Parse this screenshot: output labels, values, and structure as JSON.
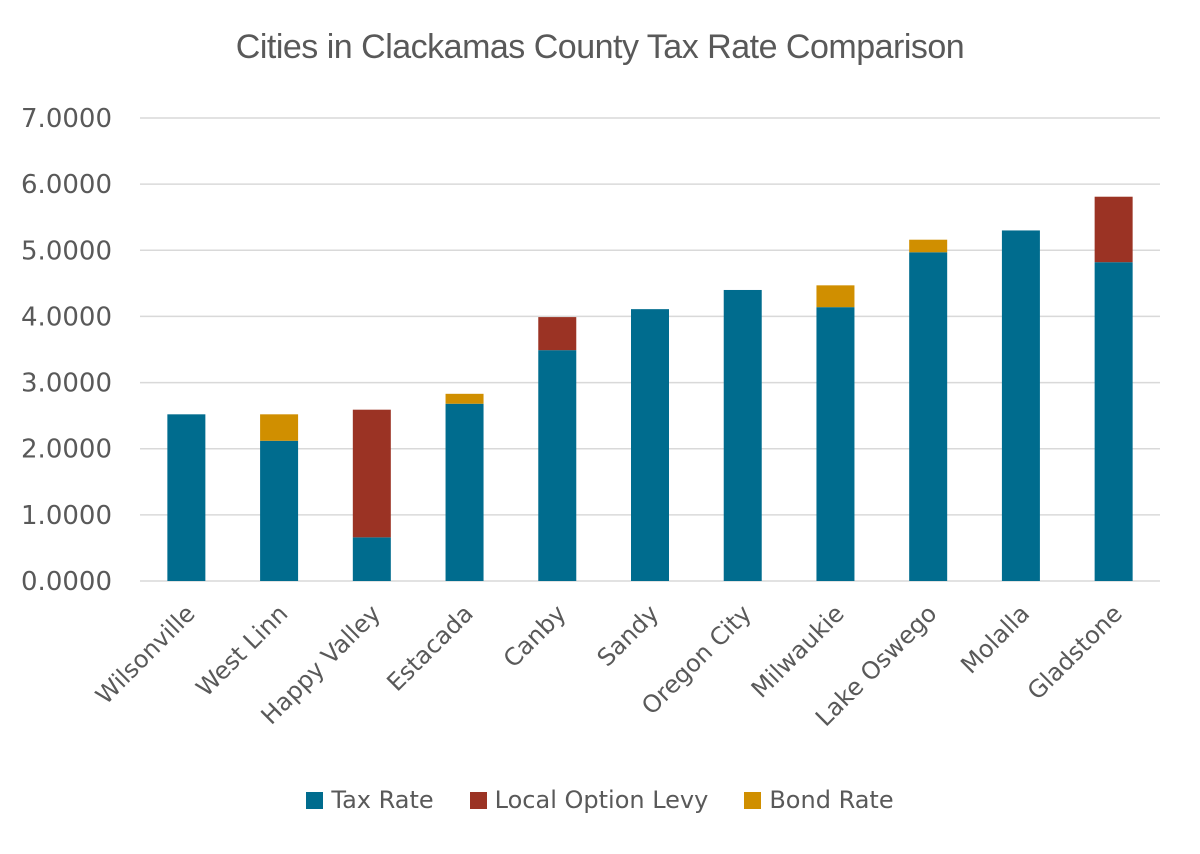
{
  "chart_data": {
    "type": "bar",
    "stacked": true,
    "title": "Cities in Clackamas County Tax Rate Comparison",
    "xlabel": "",
    "ylabel": "",
    "ylim": [
      0,
      7
    ],
    "yticks": [
      "0.0000",
      "1.0000",
      "2.0000",
      "3.0000",
      "4.0000",
      "5.0000",
      "6.0000",
      "7.0000"
    ],
    "grid": true,
    "legend_position": "bottom",
    "categories": [
      "Wilsonville",
      "West Linn",
      "Happy Valley",
      "Estacada",
      "Canby",
      "Sandy",
      "Oregon City",
      "Milwaukie",
      "Lake Oswego",
      "Molalla",
      "Gladstone"
    ],
    "series": [
      {
        "name": "Tax Rate",
        "color": "#006c8e",
        "values": [
          2.52,
          2.12,
          0.66,
          2.68,
          3.49,
          4.11,
          4.4,
          4.14,
          4.97,
          5.3,
          4.82
        ]
      },
      {
        "name": "Local Option Levy",
        "color": "#9b3324",
        "values": [
          0,
          0,
          1.93,
          0,
          0.5,
          0,
          0,
          0,
          0,
          0,
          0.99
        ]
      },
      {
        "name": "Bond Rate",
        "color": "#d08f00",
        "values": [
          0,
          0.4,
          0,
          0.15,
          0,
          0,
          0,
          0.33,
          0.19,
          0,
          0
        ]
      }
    ]
  }
}
